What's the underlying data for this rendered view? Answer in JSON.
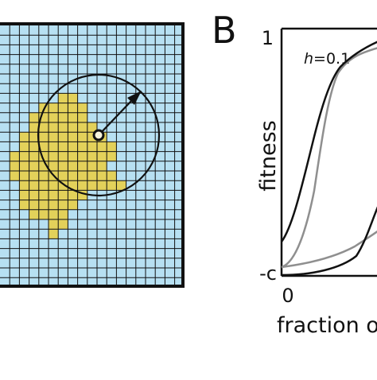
{
  "panel_b": {
    "letter": "B",
    "ylabel": "fitness",
    "y_tick_top": "1",
    "y_tick_bottom": "-c",
    "x_tick_left": "0",
    "xlabel": "fraction o",
    "curve_label_var": "h",
    "curve_label_value": "=0.1"
  },
  "colors": {
    "grid_fill": "#b7e0f2",
    "patch_fill": "#e3d15a",
    "grid_line": "#111111",
    "curve_dark": "#111111",
    "curve_gray": "#8f8f8f"
  },
  "icons": [
    "center-cell-marker-icon",
    "radius-arrow-icon"
  ]
}
